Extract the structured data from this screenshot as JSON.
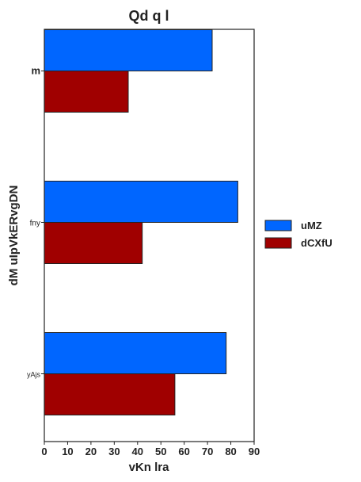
{
  "chart_data": {
    "type": "bar",
    "orientation": "horizontal",
    "title": "Qd q l",
    "xlabel": "vKn lra",
    "ylabel": "dM uIpVkERvgDN",
    "categories": [
      "m",
      "fny",
      "yAjs"
    ],
    "category_label_sizes": [
      13,
      10,
      9
    ],
    "series": [
      {
        "name": "uMZ",
        "color": "#0066ff",
        "values": [
          72,
          83,
          78
        ]
      },
      {
        "name": "dCXfU",
        "color": "#a00000",
        "values": [
          36,
          42,
          56
        ]
      }
    ],
    "xlim": [
      0,
      90
    ],
    "xticks": [
      0,
      10,
      20,
      30,
      40,
      50,
      60,
      70,
      80,
      90
    ],
    "grid": false,
    "legend_position": "right"
  }
}
